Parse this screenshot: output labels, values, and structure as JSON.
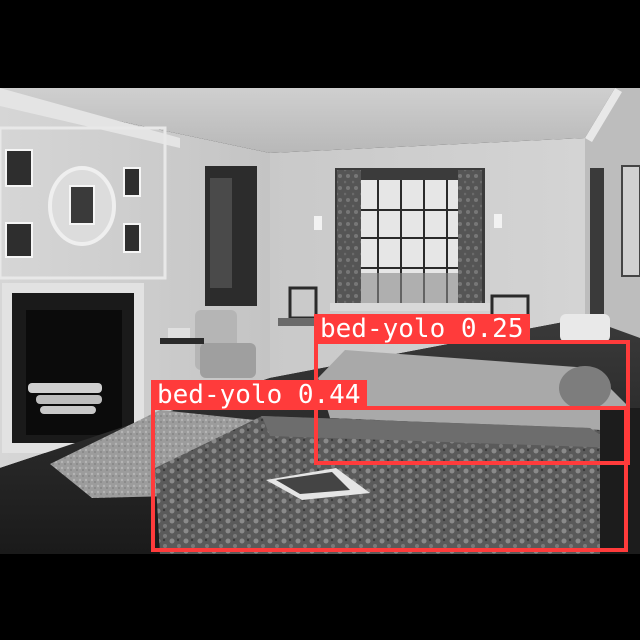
{
  "image": {
    "subject": "black-and-white-bedroom-photograph",
    "palette": {
      "bbox": "#ff3b3b",
      "label_text": "#ffffff",
      "letterbox": "#000000"
    }
  },
  "detections": [
    {
      "label": "bed-yolo 0.25",
      "class": "bed-yolo",
      "confidence": "0.25"
    },
    {
      "label": "bed-yolo 0.44",
      "class": "bed-yolo",
      "confidence": "0.44"
    }
  ]
}
